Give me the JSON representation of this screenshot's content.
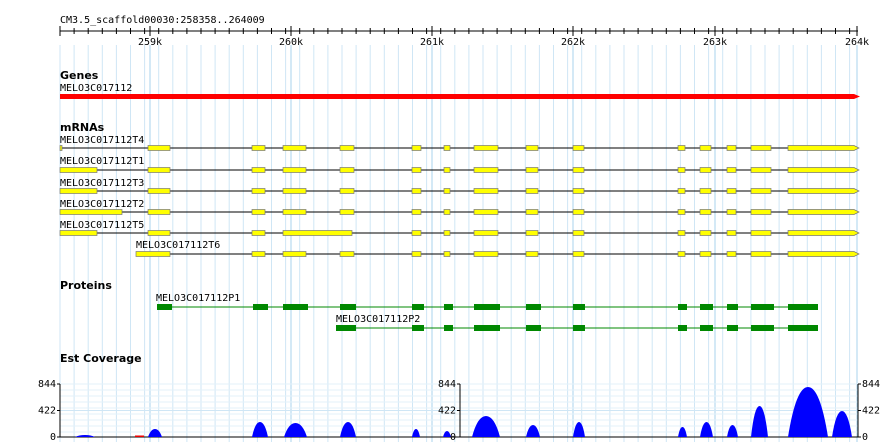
{
  "ruler": {
    "title": "CM3.5_scaffold00030:258358..264009",
    "ticks": [
      "259k",
      "260k",
      "261k",
      "262k",
      "263k",
      "264k"
    ]
  },
  "tracks": {
    "genes": {
      "label": "Genes",
      "features": [
        "MELO3C017112"
      ]
    },
    "mrnas": {
      "label": "mRNAs",
      "features": [
        "MELO3C017112T4",
        "MELO3C017112T1",
        "MELO3C017112T3",
        "MELO3C017112T2",
        "MELO3C017112T5",
        "MELO3C017112T6"
      ]
    },
    "proteins": {
      "label": "Proteins",
      "features": [
        "MELO3C017112P1",
        "MELO3C017112P2"
      ]
    },
    "est_coverage": {
      "label": "Est Coverage",
      "scales": [
        [
          844,
          422,
          0
        ],
        [
          844,
          422,
          0
        ],
        [
          844,
          422,
          0
        ]
      ]
    }
  }
}
